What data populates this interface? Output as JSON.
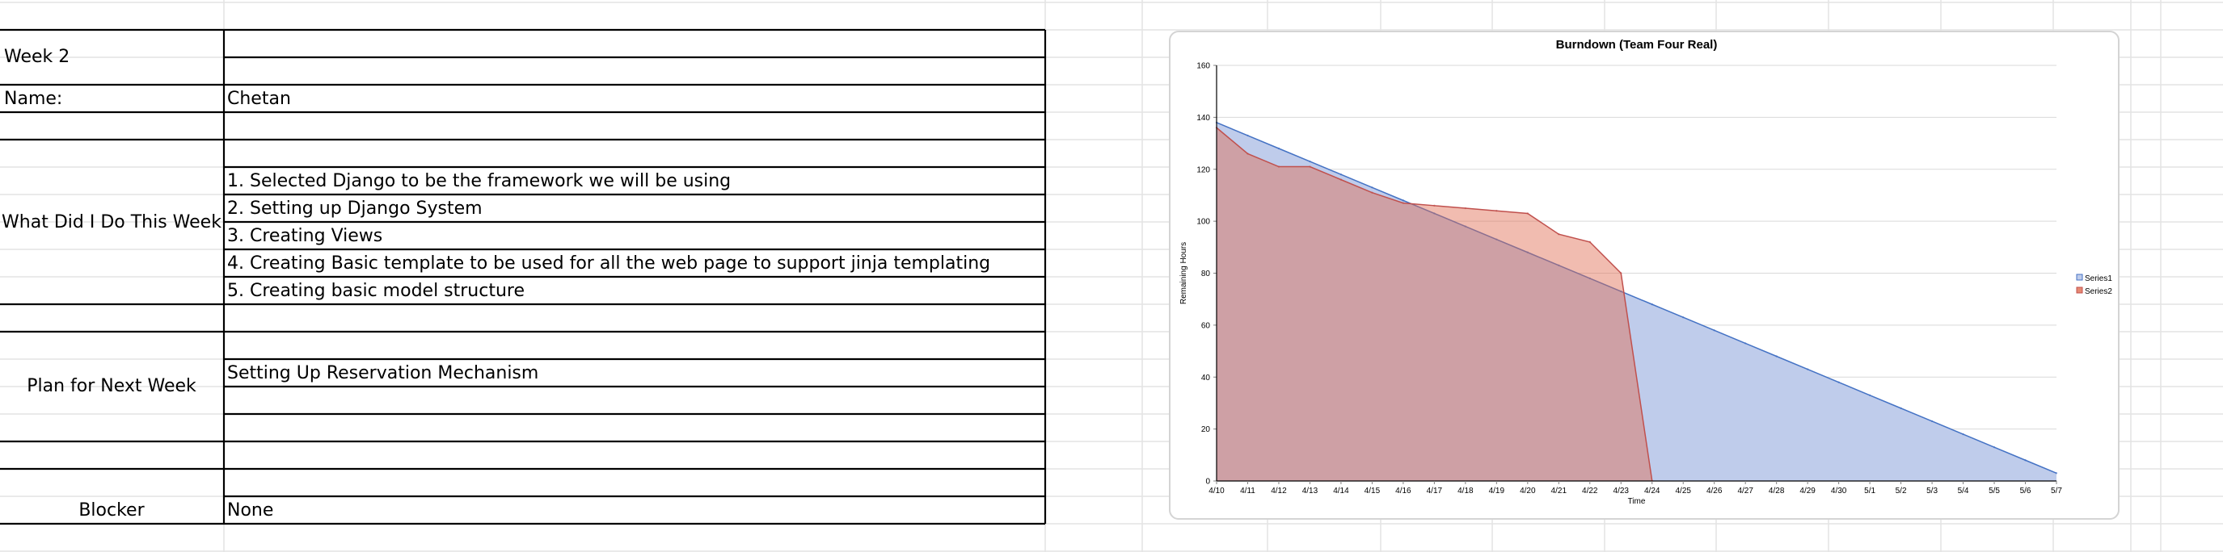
{
  "sheet": {
    "week_label": "Week 2",
    "name_label": "Name:",
    "name_value": "Chetan",
    "done_label": "What Did I Do This Week",
    "done_items": [
      "1. Selected Django to be the framework we will be using",
      "2. Setting up Django System",
      "3. Creating Views",
      "4. Creating Basic template to be used for all the web page to support jinja templating",
      "5. Creating basic model structure"
    ],
    "plan_label": "Plan for Next Week",
    "plan_items": [
      "Setting Up Reservation Mechanism"
    ],
    "blocker_label": "Blocker",
    "blocker_value": "None"
  },
  "chart_data": {
    "type": "area",
    "title": "Burndown (Team Four Real)",
    "xlabel": "Time",
    "ylabel": "Remaining Hours",
    "ylim": [
      0,
      160
    ],
    "yticks": [
      0,
      20,
      40,
      60,
      80,
      100,
      120,
      140,
      160
    ],
    "grid": true,
    "legend_position": "right",
    "categories": [
      "4/10",
      "4/11",
      "4/12",
      "4/13",
      "4/14",
      "4/15",
      "4/16",
      "4/17",
      "4/18",
      "4/19",
      "4/20",
      "4/21",
      "4/22",
      "4/23",
      "4/24",
      "4/25",
      "4/26",
      "4/27",
      "4/28",
      "4/29",
      "4/30",
      "5/1",
      "5/2",
      "5/3",
      "5/4",
      "5/5",
      "5/6",
      "5/7"
    ],
    "series": [
      {
        "name": "Series1",
        "color": "#4472c4",
        "fill": "#bfcceb",
        "values": [
          138,
          133,
          128,
          123,
          118,
          113,
          108,
          103,
          98,
          93,
          88,
          83,
          78,
          73,
          68,
          63,
          58,
          53,
          48,
          43,
          38,
          33,
          28,
          23,
          18,
          13,
          8,
          3
        ]
      },
      {
        "name": "Series2",
        "color": "#c0504d",
        "fill": "#e06b4f",
        "opacity": 0.45,
        "values": [
          136,
          126,
          121,
          121,
          116,
          111,
          107,
          106,
          105,
          104,
          103,
          95,
          92,
          80,
          0,
          null,
          null,
          null,
          null,
          null,
          null,
          null,
          null,
          null,
          null,
          null,
          null,
          null
        ]
      }
    ]
  }
}
